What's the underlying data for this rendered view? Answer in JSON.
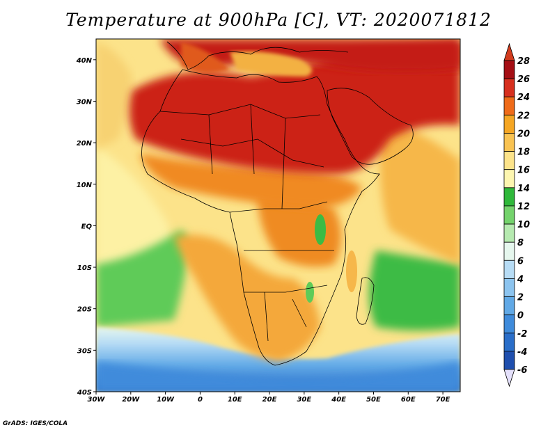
{
  "title": "Temperature at 900hPa [C], VT: 2020071812",
  "credit": "GrADS: IGES/COLA",
  "map": {
    "lon_range": [
      -30,
      75
    ],
    "lat_range": [
      -40,
      45
    ],
    "x_ticks": [
      "30W",
      "20W",
      "10W",
      "0",
      "10E",
      "20E",
      "30E",
      "40E",
      "50E",
      "60E",
      "70E"
    ],
    "y_ticks": [
      "40N",
      "30N",
      "20N",
      "10N",
      "EQ",
      "10S",
      "20S",
      "30S",
      "40S"
    ]
  },
  "colorbar": {
    "levels": [
      "28",
      "26",
      "24",
      "22",
      "20",
      "18",
      "16",
      "14",
      "12",
      "10",
      "8",
      "6",
      "4",
      "2",
      "0",
      "-2",
      "-4",
      "-6"
    ],
    "colors": [
      "#a50f15",
      "#d7301f",
      "#ef6b19",
      "#f5a623",
      "#f9c352",
      "#fce38a",
      "#fdf6b0",
      "#2fb83a",
      "#74d36c",
      "#b6eab0",
      "#e6f7ee",
      "#b7dcf5",
      "#8cc4ef",
      "#61a9e6",
      "#3f8bdb",
      "#2a6ec9",
      "#1f4fae",
      "#1a3388",
      "#16217a"
    ],
    "over_color": "#d23c1e",
    "under_color": "#e4e0fb"
  }
}
